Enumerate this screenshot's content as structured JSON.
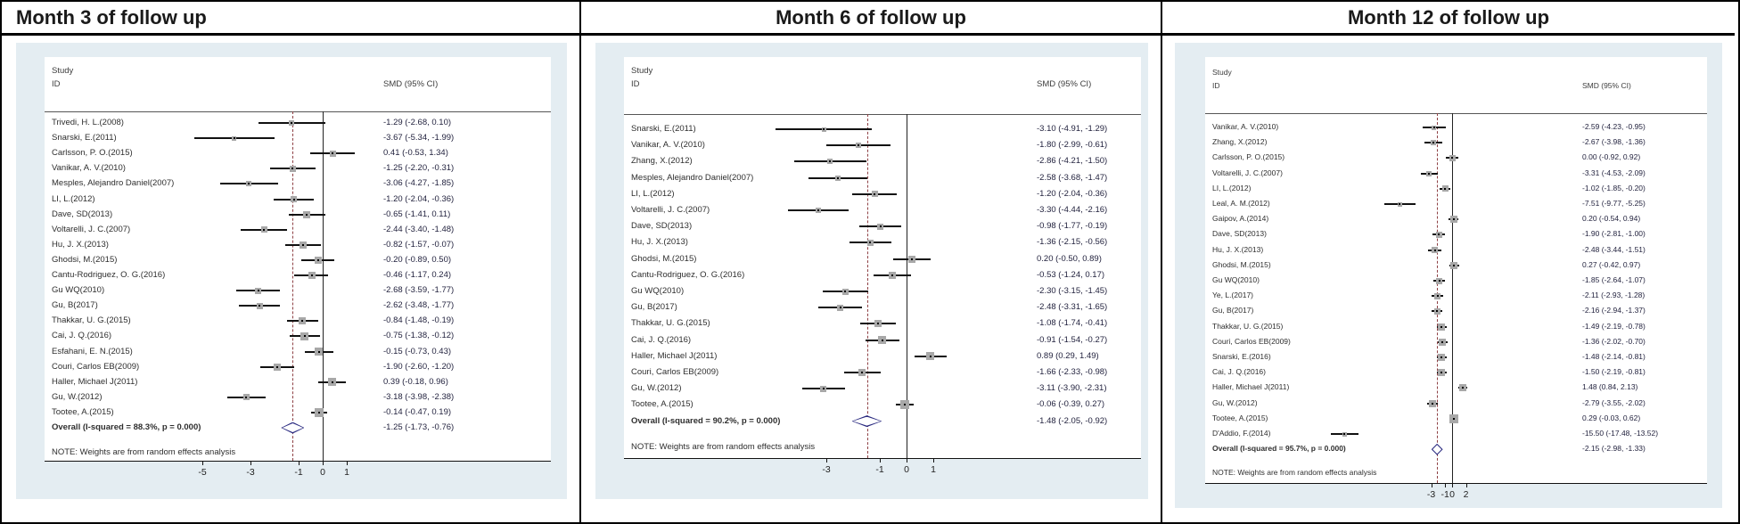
{
  "colors": {
    "panel_background": "#e4edf2",
    "reference_line": "#222222",
    "overall_dashed_line": "#8e4044",
    "diamond_outline": "#2a2a80",
    "marker_fill": "#a8a8a8",
    "ci_line": "#111111"
  },
  "chart_data": [
    {
      "type": "scatter",
      "subtype": "forest",
      "title": "Month 3 of follow up",
      "columns": {
        "study": "Study",
        "id": "ID",
        "smd": "SMD (95% CI)"
      },
      "note": "NOTE: Weights are from random effects analysis",
      "x_ticks": [
        -5,
        -3,
        -1,
        0,
        1
      ],
      "xlim": [
        -6,
        2
      ],
      "ref_line": 0,
      "studies": [
        {
          "label": "Trivedi, H. L.(2008)",
          "smd": -1.29,
          "lo": -2.68,
          "hi": 0.1,
          "display": "-1.29 (-2.68, 0.10)"
        },
        {
          "label": "Snarski, E.(2011)",
          "smd": -3.67,
          "lo": -5.34,
          "hi": -1.99,
          "display": "-3.67 (-5.34, -1.99)"
        },
        {
          "label": "Carlsson, P. O.(2015)",
          "smd": 0.41,
          "lo": -0.53,
          "hi": 1.34,
          "display": "0.41 (-0.53, 1.34)"
        },
        {
          "label": "Vanikar, A. V.(2010)",
          "smd": -1.25,
          "lo": -2.2,
          "hi": -0.31,
          "display": "-1.25 (-2.20, -0.31)"
        },
        {
          "label": "Mesples, Alejandro Daniel(2007)",
          "smd": -3.06,
          "lo": -4.27,
          "hi": -1.85,
          "display": "-3.06 (-4.27, -1.85)"
        },
        {
          "label": "LI, L.(2012)",
          "smd": -1.2,
          "lo": -2.04,
          "hi": -0.36,
          "display": "-1.20 (-2.04, -0.36)"
        },
        {
          "label": "Dave, SD(2013)",
          "smd": -0.65,
          "lo": -1.41,
          "hi": 0.11,
          "display": "-0.65 (-1.41, 0.11)"
        },
        {
          "label": "Voltarelli, J. C.(2007)",
          "smd": -2.44,
          "lo": -3.4,
          "hi": -1.48,
          "display": "-2.44 (-3.40, -1.48)"
        },
        {
          "label": "Hu, J. X.(2013)",
          "smd": -0.82,
          "lo": -1.57,
          "hi": -0.07,
          "display": "-0.82 (-1.57, -0.07)"
        },
        {
          "label": "Ghodsi, M.(2015)",
          "smd": -0.2,
          "lo": -0.89,
          "hi": 0.5,
          "display": "-0.20 (-0.89, 0.50)"
        },
        {
          "label": "Cantu-Rodriguez, O. G.(2016)",
          "smd": -0.46,
          "lo": -1.17,
          "hi": 0.24,
          "display": "-0.46 (-1.17, 0.24)"
        },
        {
          "label": "Gu WQ(2010)",
          "smd": -2.68,
          "lo": -3.59,
          "hi": -1.77,
          "display": "-2.68 (-3.59, -1.77)"
        },
        {
          "label": "Gu, B(2017)",
          "smd": -2.62,
          "lo": -3.48,
          "hi": -1.77,
          "display": "-2.62 (-3.48, -1.77)"
        },
        {
          "label": "Thakkar, U. G.(2015)",
          "smd": -0.84,
          "lo": -1.48,
          "hi": -0.19,
          "display": "-0.84 (-1.48, -0.19)"
        },
        {
          "label": "Cai, J. Q.(2016)",
          "smd": -0.75,
          "lo": -1.38,
          "hi": -0.12,
          "display": "-0.75 (-1.38, -0.12)"
        },
        {
          "label": "Esfahani, E. N.(2015)",
          "smd": -0.15,
          "lo": -0.73,
          "hi": 0.43,
          "display": "-0.15 (-0.73, 0.43)"
        },
        {
          "label": "Couri, Carlos EB(2009)",
          "smd": -1.9,
          "lo": -2.6,
          "hi": -1.2,
          "display": "-1.90 (-2.60, -1.20)"
        },
        {
          "label": "Haller, Michael J(2011)",
          "smd": 0.39,
          "lo": -0.18,
          "hi": 0.96,
          "display": "0.39 (-0.18, 0.96)"
        },
        {
          "label": "Gu, W.(2012)",
          "smd": -3.18,
          "lo": -3.98,
          "hi": -2.38,
          "display": "-3.18 (-3.98, -2.38)"
        },
        {
          "label": "Tootee, A.(2015)",
          "smd": -0.14,
          "lo": -0.47,
          "hi": 0.19,
          "display": "-0.14 (-0.47, 0.19)"
        }
      ],
      "overall": {
        "label": "Overall  (I-squared = 88.3%, p = 0.000)",
        "smd": -1.25,
        "lo": -1.73,
        "hi": -0.76,
        "display": "-1.25 (-1.73, -0.76)"
      }
    },
    {
      "type": "scatter",
      "subtype": "forest",
      "title": "Month 6 of follow up",
      "columns": {
        "study": "Study",
        "id": "ID",
        "smd": "SMD (95% CI)"
      },
      "note": "NOTE: Weights are from random effects analysis",
      "x_ticks": [
        -3,
        -1,
        0,
        1
      ],
      "xlim": [
        -5,
        2
      ],
      "ref_line": 0,
      "studies": [
        {
          "label": "Snarski, E.(2011)",
          "smd": -3.1,
          "lo": -4.91,
          "hi": -1.29,
          "display": "-3.10 (-4.91, -1.29)"
        },
        {
          "label": "Vanikar, A. V.(2010)",
          "smd": -1.8,
          "lo": -2.99,
          "hi": -0.61,
          "display": "-1.80 (-2.99, -0.61)"
        },
        {
          "label": "Zhang, X.(2012)",
          "smd": -2.86,
          "lo": -4.21,
          "hi": -1.5,
          "display": "-2.86 (-4.21, -1.50)"
        },
        {
          "label": "Mesples, Alejandro Daniel(2007)",
          "smd": -2.58,
          "lo": -3.68,
          "hi": -1.47,
          "display": "-2.58 (-3.68, -1.47)"
        },
        {
          "label": "LI, L.(2012)",
          "smd": -1.2,
          "lo": -2.04,
          "hi": -0.36,
          "display": "-1.20 (-2.04, -0.36)"
        },
        {
          "label": "Voltarelli, J. C.(2007)",
          "smd": -3.3,
          "lo": -4.44,
          "hi": -2.16,
          "display": "-3.30 (-4.44, -2.16)"
        },
        {
          "label": "Dave, SD(2013)",
          "smd": -0.98,
          "lo": -1.77,
          "hi": -0.19,
          "display": "-0.98 (-1.77, -0.19)"
        },
        {
          "label": "Hu, J. X.(2013)",
          "smd": -1.36,
          "lo": -2.15,
          "hi": -0.56,
          "display": "-1.36 (-2.15, -0.56)"
        },
        {
          "label": "Ghodsi, M.(2015)",
          "smd": 0.2,
          "lo": -0.5,
          "hi": 0.89,
          "display": "0.20 (-0.50, 0.89)"
        },
        {
          "label": "Cantu-Rodriguez, O. G.(2016)",
          "smd": -0.53,
          "lo": -1.24,
          "hi": 0.17,
          "display": "-0.53 (-1.24, 0.17)"
        },
        {
          "label": "Gu WQ(2010)",
          "smd": -2.3,
          "lo": -3.15,
          "hi": -1.45,
          "display": "-2.30 (-3.15, -1.45)"
        },
        {
          "label": "Gu, B(2017)",
          "smd": -2.48,
          "lo": -3.31,
          "hi": -1.65,
          "display": "-2.48 (-3.31, -1.65)"
        },
        {
          "label": "Thakkar, U. G.(2015)",
          "smd": -1.08,
          "lo": -1.74,
          "hi": -0.41,
          "display": "-1.08 (-1.74, -0.41)"
        },
        {
          "label": "Cai, J. Q.(2016)",
          "smd": -0.91,
          "lo": -1.54,
          "hi": -0.27,
          "display": "-0.91 (-1.54, -0.27)"
        },
        {
          "label": "Haller, Michael J(2011)",
          "smd": 0.89,
          "lo": 0.29,
          "hi": 1.49,
          "display": "0.89 (0.29, 1.49)"
        },
        {
          "label": "Couri, Carlos EB(2009)",
          "smd": -1.66,
          "lo": -2.33,
          "hi": -0.98,
          "display": "-1.66 (-2.33, -0.98)"
        },
        {
          "label": "Gu, W.(2012)",
          "smd": -3.11,
          "lo": -3.9,
          "hi": -2.31,
          "display": "-3.11 (-3.90, -2.31)"
        },
        {
          "label": "Tootee, A.(2015)",
          "smd": -0.06,
          "lo": -0.39,
          "hi": 0.27,
          "display": "-0.06 (-0.39, 0.27)"
        }
      ],
      "overall": {
        "label": "Overall  (I-squared = 90.2%, p = 0.000)",
        "smd": -1.48,
        "lo": -2.05,
        "hi": -0.92,
        "display": "-1.48 (-2.05, -0.92)"
      }
    },
    {
      "type": "scatter",
      "subtype": "forest",
      "title": "Month 12 of follow up",
      "columns": {
        "study": "Study",
        "id": "ID",
        "smd": "SMD (95% CI)"
      },
      "note": "NOTE: Weights are from random effects analysis",
      "x_ticks": [
        -3,
        -1,
        0,
        2
      ],
      "xlim": [
        -18,
        3
      ],
      "ref_line": 0,
      "studies": [
        {
          "label": "Vanikar, A. V.(2010)",
          "smd": -2.59,
          "lo": -4.23,
          "hi": -0.95,
          "display": "-2.59 (-4.23, -0.95)"
        },
        {
          "label": "Zhang, X.(2012)",
          "smd": -2.67,
          "lo": -3.98,
          "hi": -1.36,
          "display": "-2.67 (-3.98, -1.36)"
        },
        {
          "label": "Carlsson, P. O.(2015)",
          "smd": 0.0,
          "lo": -0.92,
          "hi": 0.92,
          "display": "0.00 (-0.92, 0.92)"
        },
        {
          "label": "Voltarelli, J. C.(2007)",
          "smd": -3.31,
          "lo": -4.53,
          "hi": -2.09,
          "display": "-3.31 (-4.53, -2.09)"
        },
        {
          "label": "LI, L.(2012)",
          "smd": -1.02,
          "lo": -1.85,
          "hi": -0.2,
          "display": "-1.02 (-1.85, -0.20)"
        },
        {
          "label": "Leal, A. M.(2012)",
          "smd": -7.51,
          "lo": -9.77,
          "hi": -5.25,
          "display": "-7.51 (-9.77, -5.25)"
        },
        {
          "label": "Gaipov, A.(2014)",
          "smd": 0.2,
          "lo": -0.54,
          "hi": 0.94,
          "display": "0.20 (-0.54, 0.94)"
        },
        {
          "label": "Dave, SD(2013)",
          "smd": -1.9,
          "lo": -2.81,
          "hi": -1.0,
          "display": "-1.90 (-2.81, -1.00)"
        },
        {
          "label": "Hu, J. X.(2013)",
          "smd": -2.48,
          "lo": -3.44,
          "hi": -1.51,
          "display": "-2.48 (-3.44, -1.51)"
        },
        {
          "label": "Ghodsi, M.(2015)",
          "smd": 0.27,
          "lo": -0.42,
          "hi": 0.97,
          "display": "0.27 (-0.42, 0.97)"
        },
        {
          "label": "Gu WQ(2010)",
          "smd": -1.85,
          "lo": -2.64,
          "hi": -1.07,
          "display": "-1.85 (-2.64, -1.07)"
        },
        {
          "label": "Ye, L.(2017)",
          "smd": -2.11,
          "lo": -2.93,
          "hi": -1.28,
          "display": "-2.11 (-2.93, -1.28)"
        },
        {
          "label": "Gu, B(2017)",
          "smd": -2.16,
          "lo": -2.94,
          "hi": -1.37,
          "display": "-2.16 (-2.94, -1.37)"
        },
        {
          "label": "Thakkar, U. G.(2015)",
          "smd": -1.49,
          "lo": -2.19,
          "hi": -0.78,
          "display": "-1.49 (-2.19, -0.78)"
        },
        {
          "label": "Couri, Carlos EB(2009)",
          "smd": -1.36,
          "lo": -2.02,
          "hi": -0.7,
          "display": "-1.36 (-2.02, -0.70)"
        },
        {
          "label": "Snarski, E.(2016)",
          "smd": -1.48,
          "lo": -2.14,
          "hi": -0.81,
          "display": "-1.48 (-2.14, -0.81)"
        },
        {
          "label": "Cai, J. Q.(2016)",
          "smd": -1.5,
          "lo": -2.19,
          "hi": -0.81,
          "display": "-1.50 (-2.19, -0.81)"
        },
        {
          "label": "Haller, Michael J(2011)",
          "smd": 1.48,
          "lo": 0.84,
          "hi": 2.13,
          "display": "1.48 (0.84, 2.13)"
        },
        {
          "label": "Gu, W.(2012)",
          "smd": -2.79,
          "lo": -3.55,
          "hi": -2.02,
          "display": "-2.79 (-3.55, -2.02)"
        },
        {
          "label": "Tootee, A.(2015)",
          "smd": 0.29,
          "lo": -0.03,
          "hi": 0.62,
          "display": "0.29 (-0.03, 0.62)"
        },
        {
          "label": "D'Addio, F.(2014)",
          "smd": -15.5,
          "lo": -17.48,
          "hi": -13.52,
          "display": "-15.50 (-17.48, -13.52)"
        }
      ],
      "overall": {
        "label": "Overall  (I-squared = 95.7%, p = 0.000)",
        "smd": -2.15,
        "lo": -2.98,
        "hi": -1.33,
        "display": "-2.15 (-2.98, -1.33)"
      }
    }
  ]
}
